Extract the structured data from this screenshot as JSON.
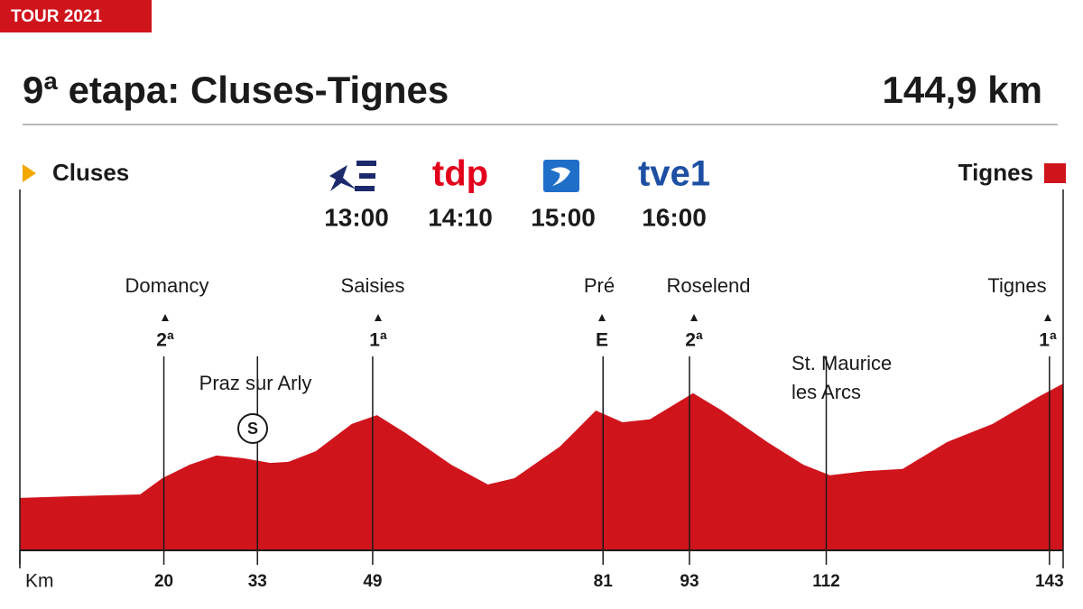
{
  "badge": "TOUR 2021",
  "title": "9ª etapa: Cluses-Tignes",
  "distance": "144,9 km",
  "start": "Cluses",
  "finish": "Tignes",
  "broadcasts": [
    {
      "time": "13:00"
    },
    {
      "logo": "tdp",
      "time": "14:10"
    },
    {
      "time": "15:00"
    },
    {
      "logo": "tve1",
      "time": "16:00"
    }
  ],
  "places": {
    "domancy": {
      "name": "Domancy",
      "category": "2ª"
    },
    "praz": {
      "name": "Praz sur Arly",
      "symbol": "S"
    },
    "saisies": {
      "name": "Saisies",
      "category": "1ª"
    },
    "pre": {
      "name": "Pré",
      "category": "E"
    },
    "roselend": {
      "name": "Roselend",
      "category": "2ª"
    },
    "stmaurice": {
      "name": [
        "St. Maurice",
        "les Arcs"
      ]
    },
    "tignes": {
      "name": "Tignes",
      "category": "1ª"
    }
  },
  "chart_data": {
    "type": "area",
    "color": "#d0141c",
    "x": [
      0,
      7.3,
      16.7,
      19.8,
      23.6,
      27.3,
      31.1,
      34.8,
      37.3,
      41.1,
      46.1,
      49.6,
      53.6,
      59.9,
      65,
      68.7,
      75,
      80,
      83.7,
      87.5,
      93.5,
      97.5,
      103.8,
      108.8,
      112.5,
      117.5,
      122.6,
      128.8,
      135.1,
      141.4,
      144.9
    ],
    "values": [
      490,
      515,
      540,
      770,
      960,
      1090,
      1050,
      985,
      1000,
      1150,
      1535,
      1660,
      1405,
      960,
      680,
      770,
      1215,
      1725,
      1560,
      1600,
      1970,
      1725,
      1280,
      960,
      810,
      870,
      900,
      1280,
      1535,
      1915,
      2105
    ],
    "xlim": [
      0,
      144.9
    ],
    "ylim": [
      -250,
      3700
    ],
    "xticks": [
      {
        "value": 0,
        "label": "Km"
      },
      20,
      33,
      49,
      81,
      93,
      112,
      143
    ]
  }
}
